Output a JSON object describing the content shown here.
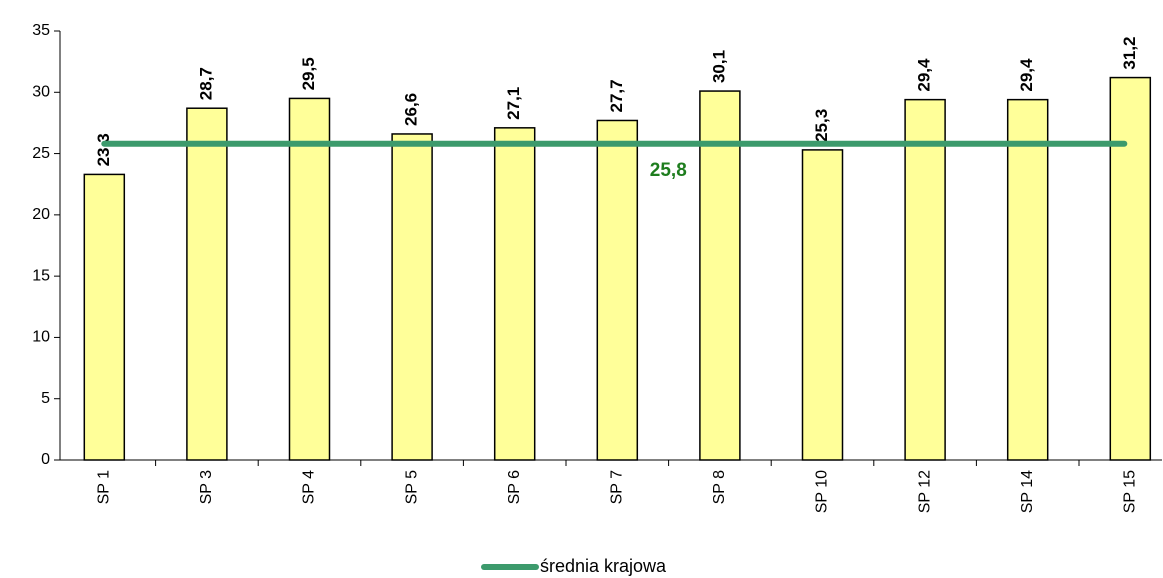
{
  "chart_data": {
    "type": "bar",
    "categories": [
      "SP 1",
      "SP 3",
      "SP 4",
      "SP 5",
      "SP 6",
      "SP 7",
      "SP 8",
      "SP 10",
      "SP 12",
      "SP 14",
      "SP 15"
    ],
    "series": [
      {
        "name": null,
        "type": "bar",
        "color": "#ffff99",
        "values": [
          23.3,
          28.7,
          29.5,
          26.6,
          27.1,
          27.7,
          30.1,
          25.3,
          29.4,
          29.4,
          31.2
        ],
        "value_labels": [
          "23,3",
          "28,7",
          "29,5",
          "26,6",
          "27,1",
          "27,7",
          "30,1",
          "25,3",
          "29,4",
          "29,4",
          "31,2"
        ]
      },
      {
        "name": "średnia krajowa",
        "type": "line",
        "color": "#3c9a6c",
        "values": [
          25.8,
          25.8,
          25.8,
          25.8,
          25.8,
          25.8,
          25.8,
          25.8,
          25.8,
          25.8,
          25.8
        ],
        "value_labels": [
          null,
          null,
          null,
          null,
          null,
          "25,8",
          null,
          null,
          null,
          null,
          null
        ],
        "label_color": "#1e7d1e"
      }
    ],
    "ylim": [
      0,
      35
    ],
    "yticks": [
      0,
      5,
      10,
      15,
      20,
      25,
      30,
      35
    ],
    "legend": "bottom"
  }
}
